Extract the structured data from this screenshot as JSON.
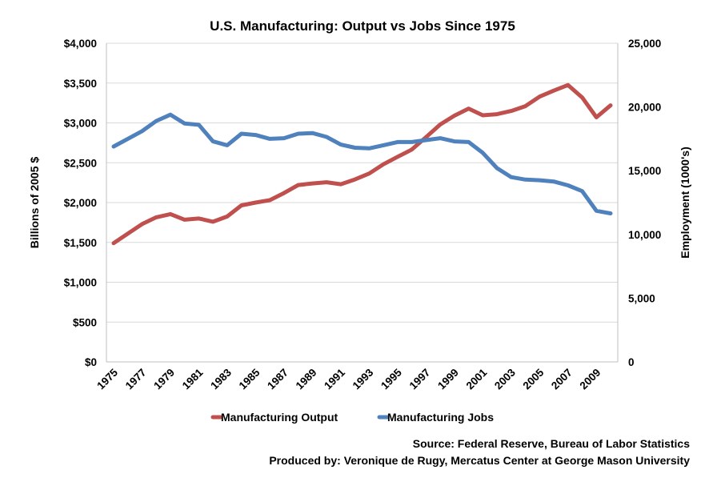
{
  "chart_data": {
    "type": "line",
    "title": "U.S. Manufacturing: Output vs Jobs Since 1975",
    "ylabel_left": "Billions of 2005 $",
    "ylabel_right": "Employment (1000's)",
    "xlabel": "",
    "x": [
      1975,
      1976,
      1977,
      1978,
      1979,
      1980,
      1981,
      1982,
      1983,
      1984,
      1985,
      1986,
      1987,
      1988,
      1989,
      1990,
      1991,
      1992,
      1993,
      1994,
      1995,
      1996,
      1997,
      1998,
      1999,
      2000,
      2001,
      2002,
      2003,
      2004,
      2005,
      2006,
      2007,
      2008,
      2009,
      2010
    ],
    "x_tick_labels": [
      "1975",
      "1977",
      "1979",
      "1981",
      "1983",
      "1985",
      "1987",
      "1989",
      "1991",
      "1993",
      "1995",
      "1997",
      "1999",
      "2001",
      "2003",
      "2005",
      "2007",
      "2009"
    ],
    "ylim_left": [
      0,
      4000
    ],
    "ylim_right": [
      0,
      25000
    ],
    "y_left_tick_labels": [
      "$0",
      "$500",
      "$1,000",
      "$1,500",
      "$2,000",
      "$2,500",
      "$3,000",
      "$3,500",
      "$4,000"
    ],
    "y_right_tick_labels": [
      "0",
      "5,000",
      "10,000",
      "15,000",
      "20,000",
      "25,000"
    ],
    "grid": true,
    "legend_position": "bottom",
    "series": [
      {
        "name": "Manufacturing Output",
        "axis": "left",
        "color": "#c0504d",
        "values": [
          1490,
          1610,
          1730,
          1815,
          1855,
          1785,
          1800,
          1760,
          1825,
          1965,
          2000,
          2030,
          2120,
          2220,
          2240,
          2255,
          2230,
          2290,
          2365,
          2480,
          2575,
          2665,
          2820,
          2980,
          3090,
          3180,
          3095,
          3110,
          3150,
          3210,
          3330,
          3405,
          3475,
          3320,
          3070,
          3220
        ]
      },
      {
        "name": "Manufacturing Jobs",
        "axis": "right",
        "color": "#4f81bd",
        "values": [
          16900,
          17500,
          18100,
          18900,
          19400,
          18700,
          18600,
          17300,
          17000,
          17900,
          17800,
          17500,
          17550,
          17900,
          17950,
          17650,
          17050,
          16800,
          16750,
          17000,
          17250,
          17250,
          17400,
          17550,
          17300,
          17250,
          16400,
          15200,
          14500,
          14300,
          14250,
          14150,
          13850,
          13400,
          11850,
          11650
        ]
      }
    ]
  },
  "footer": {
    "source": "Source: Federal Reserve, Bureau of Labor Statistics",
    "produced_by": "Produced by: Veronique de Rugy, Mercatus Center at George Mason University"
  }
}
